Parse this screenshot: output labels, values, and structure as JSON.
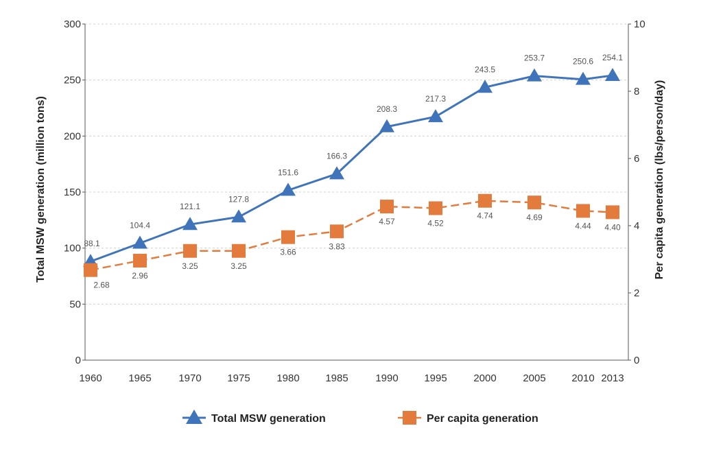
{
  "chart_data": {
    "type": "line",
    "title": "",
    "x": [
      "1960",
      "1965",
      "1970",
      "1975",
      "1980",
      "1985",
      "1990",
      "1995",
      "2000",
      "2005",
      "2010",
      "2013"
    ],
    "xlabel": "",
    "ylabel_left": "Total MSW generation (million tons)",
    "ylabel_right": "Per capita generation (lbs/person/day)",
    "ylim_left": [
      0,
      300
    ],
    "yticks_left": [
      "0",
      "50",
      "100",
      "150",
      "200",
      "250",
      "300"
    ],
    "ylim_right": [
      0,
      10
    ],
    "yticks_right": [
      "0",
      "2",
      "4",
      "6",
      "8",
      "10"
    ],
    "grid": "horizontal dashed",
    "legend_position": "bottom",
    "series": [
      {
        "name": "Total MSW generation",
        "axis": "left",
        "marker": "triangle",
        "line": "solid",
        "color": "#3f74bb",
        "values": [
          88.1,
          104.4,
          121.1,
          127.8,
          151.6,
          166.3,
          208.3,
          217.3,
          243.5,
          253.7,
          250.6,
          254.1
        ],
        "labels": [
          "88.1",
          "104.4",
          "121.1",
          "127.8",
          "151.6",
          "166.3",
          "208.3",
          "217.3",
          "243.5",
          "253.7",
          "250.6",
          "254.1"
        ]
      },
      {
        "name": "Per capita generation",
        "axis": "right",
        "marker": "square",
        "line": "dashed",
        "color": "#e37b3d",
        "values": [
          2.68,
          2.96,
          3.25,
          3.25,
          3.66,
          3.83,
          4.57,
          4.52,
          4.74,
          4.69,
          4.44,
          4.4
        ],
        "labels": [
          "2.68",
          "2.96",
          "3.25",
          "3.25",
          "3.66",
          "3.83",
          "4.57",
          "4.52",
          "4.74",
          "4.69",
          "4.44",
          "4.40"
        ]
      }
    ]
  }
}
